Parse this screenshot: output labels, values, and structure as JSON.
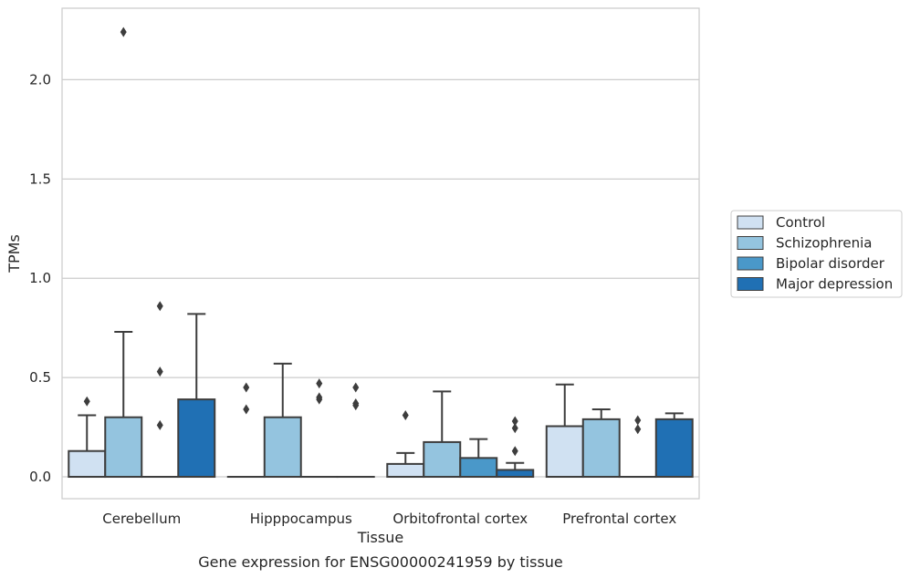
{
  "chart_data": {
    "type": "box",
    "caption": "Gene expression for ENSG00000241959 by tissue",
    "xlabel": "Tissue",
    "ylabel": "TPMs",
    "categories": [
      "Cerebellum",
      "Hipppocampus",
      "Orbitofrontal cortex",
      "Prefrontal cortex"
    ],
    "ylim": [
      -0.11,
      2.36
    ],
    "yticks": [
      0.0,
      0.5,
      1.0,
      1.5,
      2.0
    ],
    "ytick_labels": [
      "0.0",
      "0.5",
      "1.0",
      "1.5",
      "2.0"
    ],
    "grid": "horizontal",
    "legend_position": "right",
    "series": [
      {
        "name": "Control",
        "color": "#d0e1f2",
        "boxes": [
          {
            "q1": 0.0,
            "median": 0.0,
            "q3": 0.13,
            "whisker_low": 0.0,
            "whisker_high": 0.31,
            "outliers": [
              0.38
            ]
          },
          {
            "q1": 0.0,
            "median": 0.0,
            "q3": 0.0,
            "whisker_low": 0.0,
            "whisker_high": 0.0,
            "outliers": [
              0.34,
              0.45
            ]
          },
          {
            "q1": 0.0,
            "median": 0.0,
            "q3": 0.065,
            "whisker_low": 0.0,
            "whisker_high": 0.12,
            "outliers": [
              0.31
            ]
          },
          {
            "q1": 0.0,
            "median": 0.0,
            "q3": 0.255,
            "whisker_low": 0.0,
            "whisker_high": 0.465,
            "outliers": []
          }
        ]
      },
      {
        "name": "Schizophrenia",
        "color": "#94c4df",
        "boxes": [
          {
            "q1": 0.0,
            "median": 0.0,
            "q3": 0.3,
            "whisker_low": 0.0,
            "whisker_high": 0.73,
            "outliers": [
              2.24
            ]
          },
          {
            "q1": 0.0,
            "median": 0.0,
            "q3": 0.3,
            "whisker_low": 0.0,
            "whisker_high": 0.57,
            "outliers": []
          },
          {
            "q1": 0.0,
            "median": 0.0,
            "q3": 0.175,
            "whisker_low": 0.0,
            "whisker_high": 0.43,
            "outliers": []
          },
          {
            "q1": 0.0,
            "median": 0.0,
            "q3": 0.29,
            "whisker_low": 0.0,
            "whisker_high": 0.34,
            "outliers": []
          }
        ]
      },
      {
        "name": "Bipolar disorder",
        "color": "#4a98c9",
        "boxes": [
          {
            "q1": 0.0,
            "median": 0.0,
            "q3": 0.0,
            "whisker_low": 0.0,
            "whisker_high": 0.0,
            "outliers": [
              0.26,
              0.53,
              0.86
            ]
          },
          {
            "q1": 0.0,
            "median": 0.0,
            "q3": 0.0,
            "whisker_low": 0.0,
            "whisker_high": 0.0,
            "outliers": [
              0.39,
              0.4,
              0.47
            ]
          },
          {
            "q1": 0.0,
            "median": 0.0,
            "q3": 0.095,
            "whisker_low": 0.0,
            "whisker_high": 0.19,
            "outliers": []
          },
          {
            "q1": 0.0,
            "median": 0.0,
            "q3": 0.0,
            "whisker_low": 0.0,
            "whisker_high": 0.0,
            "outliers": [
              0.24,
              0.285
            ]
          }
        ]
      },
      {
        "name": "Major depression",
        "color": "#2070b4",
        "boxes": [
          {
            "q1": 0.0,
            "median": 0.0,
            "q3": 0.39,
            "whisker_low": 0.0,
            "whisker_high": 0.82,
            "outliers": []
          },
          {
            "q1": 0.0,
            "median": 0.0,
            "q3": 0.0,
            "whisker_low": 0.0,
            "whisker_high": 0.0,
            "outliers": [
              0.36,
              0.37,
              0.45
            ]
          },
          {
            "q1": 0.0,
            "median": 0.0,
            "q3": 0.035,
            "whisker_low": 0.0,
            "whisker_high": 0.07,
            "outliers": [
              0.13,
              0.245,
              0.28
            ]
          },
          {
            "q1": 0.0,
            "median": 0.0,
            "q3": 0.29,
            "whisker_low": 0.0,
            "whisker_high": 0.32,
            "outliers": []
          }
        ]
      }
    ]
  }
}
